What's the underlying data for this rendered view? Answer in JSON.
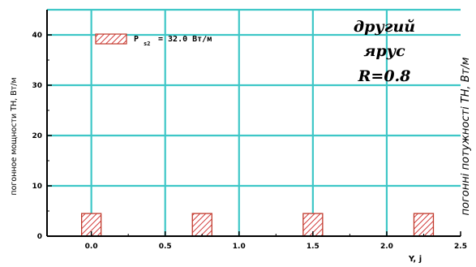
{
  "chart_data": {
    "type": "bar",
    "x": [
      0.0,
      0.75,
      1.5,
      2.25
    ],
    "values": [
      4.5,
      4.5,
      4.5,
      4.5
    ],
    "xlim": [
      -0.3,
      2.5
    ],
    "ylim": [
      0,
      45
    ],
    "xticks": [
      0.0,
      0.5,
      1.0,
      1.5,
      2.0,
      2.5
    ],
    "xtick_labels": [
      "0.0",
      "0.5",
      "1.0",
      "1.5",
      "2.0",
      "2.5"
    ],
    "yticks": [
      0,
      10,
      20,
      30,
      40
    ],
    "ytick_labels": [
      "0",
      "10",
      "20",
      "30",
      "40"
    ],
    "xlabel": "Y, j",
    "ylabel": "погонное мощности ТН, Вт/м",
    "right_label": "погонні потужності ТН, Вт/м",
    "grid": true,
    "legend": {
      "placement": "top-left",
      "symbol": "P",
      "subscript": "s2",
      "value_text": "= 32.0 Вт/м"
    },
    "annotation": [
      "другий",
      "ярус",
      "R=0.8"
    ],
    "colors": {
      "grid": "#3ec7c7",
      "bar_hatch": "#d23a3a",
      "bar_border": "#c0392b",
      "axis": "#000000"
    }
  }
}
